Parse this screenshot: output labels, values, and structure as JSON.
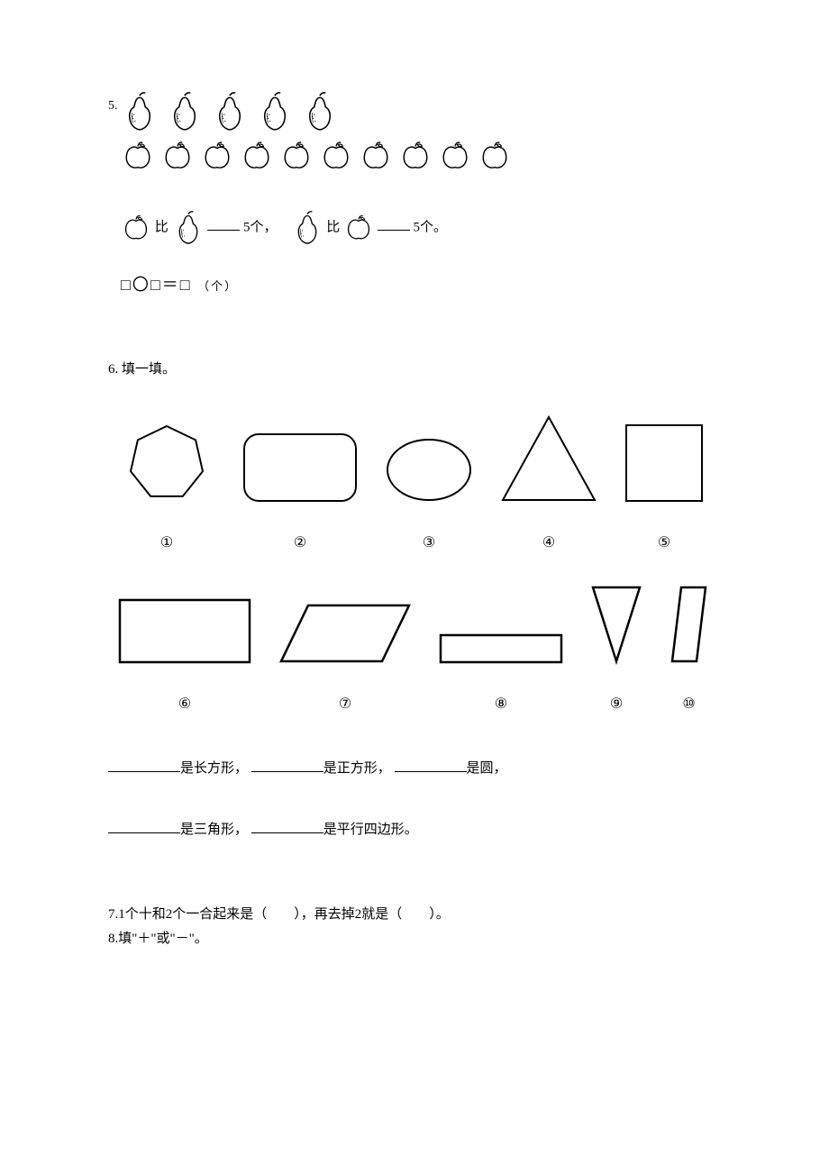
{
  "q5": {
    "number": "5.",
    "pear_count": 5,
    "apple_count": 10,
    "compare_blank_value": "5个，",
    "compare_blank_value2": "5个。",
    "compare_word_bi": "比",
    "equation": "□〇□＝□",
    "equation_unit": "（个）"
  },
  "q6": {
    "number": "6.",
    "title": "填一填。",
    "labels_row1": [
      "①",
      "②",
      "③",
      "④",
      "⑤"
    ],
    "labels_row2": [
      "⑥",
      "⑦",
      "⑧",
      "⑨",
      "⑩"
    ],
    "shapes_row1": [
      {
        "type": "heptagon",
        "w": 110,
        "h": 90,
        "stroke": "#000000"
      },
      {
        "type": "roundrect",
        "w": 130,
        "h": 80,
        "stroke": "#000000"
      },
      {
        "type": "ellipse",
        "w": 100,
        "h": 75,
        "stroke": "#000000"
      },
      {
        "type": "triangle",
        "w": 110,
        "h": 100,
        "stroke": "#000000"
      },
      {
        "type": "square",
        "w": 90,
        "h": 90,
        "stroke": "#000000"
      }
    ],
    "shapes_row2": [
      {
        "type": "rect",
        "w": 150,
        "h": 75,
        "stroke": "#000000"
      },
      {
        "type": "parallelogram",
        "w": 150,
        "h": 70,
        "stroke": "#000000"
      },
      {
        "type": "rect",
        "w": 140,
        "h": 36,
        "stroke": "#000000"
      },
      {
        "type": "triangle-down",
        "w": 60,
        "h": 90,
        "stroke": "#000000"
      },
      {
        "type": "parallelogram-tall",
        "w": 45,
        "h": 90,
        "stroke": "#000000"
      }
    ],
    "fill_a": "是长方形，",
    "fill_b": "是正方形，",
    "fill_c": "是圆，",
    "fill_d": "是三角形，",
    "fill_e": "是平行四边形。"
  },
  "q7": {
    "text": "7.1个十和2个一合起来是（　　），再去掉2就是（　　）。"
  },
  "q8": {
    "text": "8.填\"＋\"或\"－\"。"
  },
  "colors": {
    "stroke": "#000000",
    "bg": "#ffffff"
  }
}
